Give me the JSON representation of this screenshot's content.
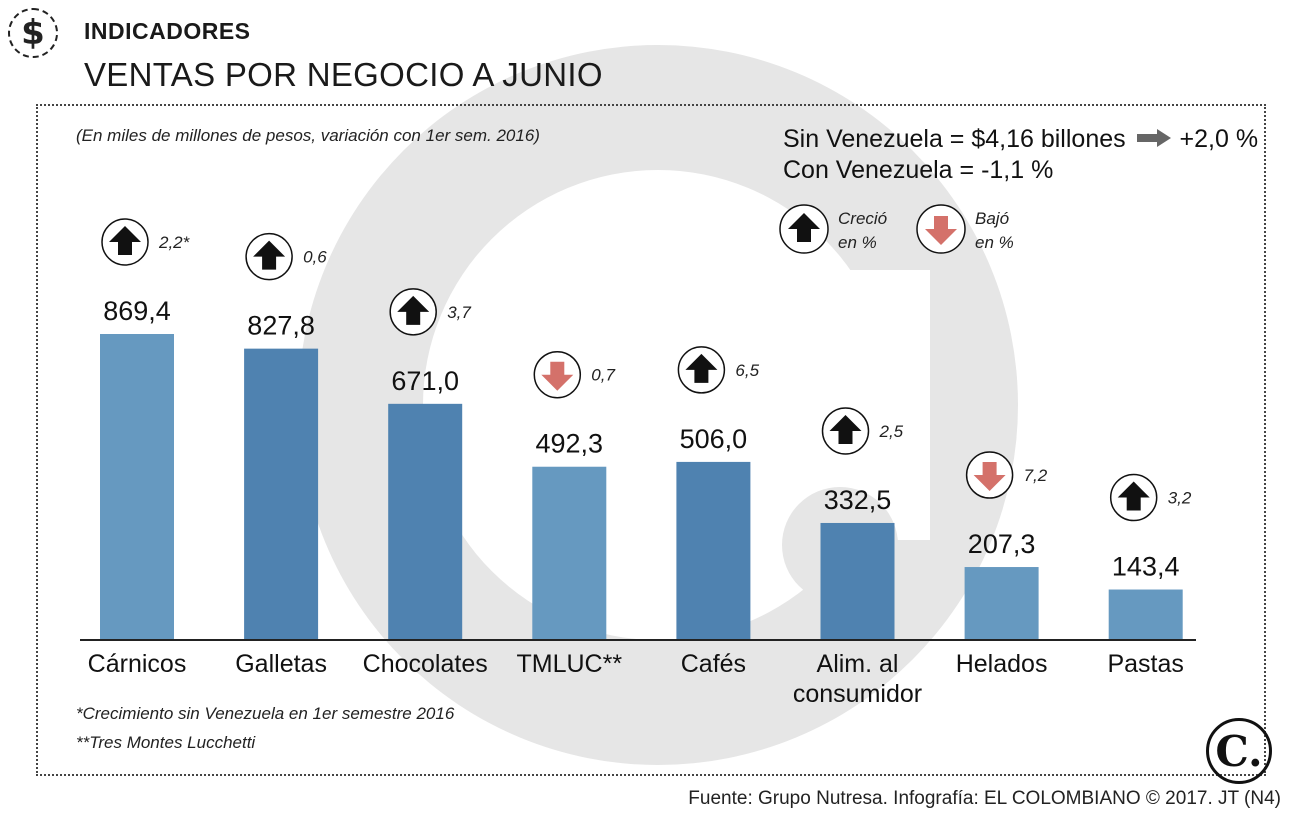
{
  "header": {
    "kicker": "INDICADORES",
    "headline": "VENTAS POR NEGOCIO A JUNIO",
    "badge_symbol": "$",
    "badge_icon": "dollar-icon"
  },
  "subtitle": "(En miles de millones de pesos, variación con 1er sem. 2016)",
  "summary": {
    "line1_text": "Sin Venezuela = $4,16 billones",
    "line1_change": "+2,0 %",
    "line2_text": "Con Venezuela = -1,1 %"
  },
  "legend": {
    "up_line1": "Creció",
    "up_line2": "en %",
    "down_line1": "Bajó",
    "down_line2": "en %"
  },
  "footnotes": [
    "*Crecimiento sin Venezuela en 1er semestre 2016",
    "**Tres Montes Lucchetti"
  ],
  "source": "Fuente: Grupo Nutresa. Infografía: EL COLOMBIANO © 2017. JT (N4)",
  "logo_letter": "C.",
  "colors": {
    "bar_light": "#6699c0",
    "bar_dark": "#4f82b0",
    "up_arrow": "#111111",
    "down_arrow": "#d4716a",
    "watermark": "#e6e6e6"
  },
  "chart_data": {
    "type": "bar",
    "categories": [
      "Cárnicos",
      "Galletas",
      "Chocolates",
      "TMLUC**",
      "Cafés",
      "Alim. al consumidor",
      "Helados",
      "Pastas"
    ],
    "category_lines": [
      [
        "Cárnicos"
      ],
      [
        "Galletas"
      ],
      [
        "Chocolates"
      ],
      [
        "TMLUC**"
      ],
      [
        "Cafés"
      ],
      [
        "Alim. al",
        "consumidor"
      ],
      [
        "Helados"
      ],
      [
        "Pastas"
      ]
    ],
    "values": [
      869.4,
      827.8,
      671.0,
      492.3,
      506.0,
      332.5,
      207.3,
      143.4
    ],
    "value_labels": [
      "869,4",
      "827,8",
      "671,0",
      "492,3",
      "506,0",
      "332,5",
      "207,3",
      "143,4"
    ],
    "change": [
      "2,2*",
      "0,6",
      "3,7",
      "0,7",
      "6,5",
      "2,5",
      "7,2",
      "3,2"
    ],
    "direction": [
      "up",
      "up",
      "up",
      "down",
      "up",
      "up",
      "down",
      "up"
    ],
    "ylim": [
      0,
      1000
    ],
    "grid": false,
    "legend": "top-right"
  }
}
